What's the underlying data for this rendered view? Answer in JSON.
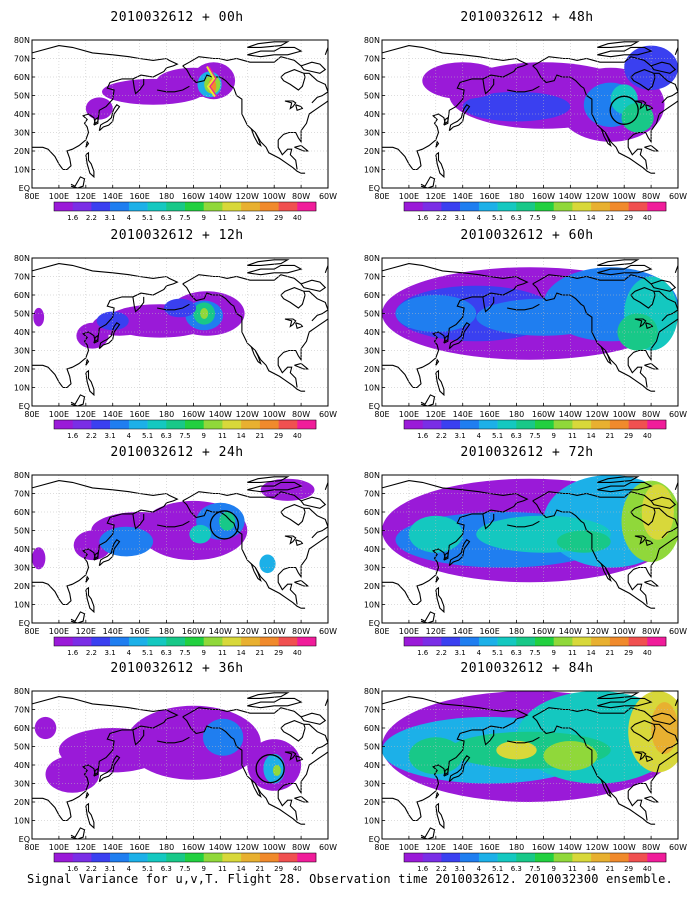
{
  "footer": "Signal Variance for u,v,T. Flight 28. Observation time 2010032612. 2010032300 ensemble.",
  "lat_labels": [
    "80N",
    "70N",
    "60N",
    "50N",
    "40N",
    "30N",
    "20N",
    "10N",
    "EQ"
  ],
  "lon_labels": [
    "80E",
    "100E",
    "120E",
    "140E",
    "160E",
    "180",
    "160W",
    "140W",
    "120W",
    "100W",
    "80W",
    "60W"
  ],
  "colorbar": {
    "labels": [
      "1.6",
      "2.2",
      "3.1",
      "4",
      "5.1",
      "6.3",
      "7.5",
      "9",
      "11",
      "14",
      "21",
      "29",
      "40"
    ],
    "colors": [
      "#9a1ad8",
      "#7a2ee6",
      "#3a40f0",
      "#1f7ef0",
      "#1cb0e8",
      "#14c8c0",
      "#18c888",
      "#22d040",
      "#90d83a",
      "#d8d83a",
      "#e8b030",
      "#f08a2c",
      "#f05050",
      "#f01c9a"
    ]
  },
  "panels": [
    {
      "title": "2010032612 + 00h",
      "level": 0,
      "circle": null
    },
    {
      "title": "2010032612 + 12h",
      "level": 1,
      "circle": null
    },
    {
      "title": "2010032612 + 24h",
      "level": 2,
      "circle": [
        -137,
        53
      ]
    },
    {
      "title": "2010032612 + 36h",
      "level": 3,
      "circle": [
        -103,
        38
      ]
    },
    {
      "title": "2010032612 + 48h",
      "level": 4,
      "circle": [
        -100,
        42
      ]
    },
    {
      "title": "2010032612 + 60h",
      "level": 5,
      "circle": null
    },
    {
      "title": "2010032612 + 72h",
      "level": 6,
      "circle": null
    },
    {
      "title": "2010032612 + 84h",
      "level": 7,
      "circle": null
    }
  ]
}
